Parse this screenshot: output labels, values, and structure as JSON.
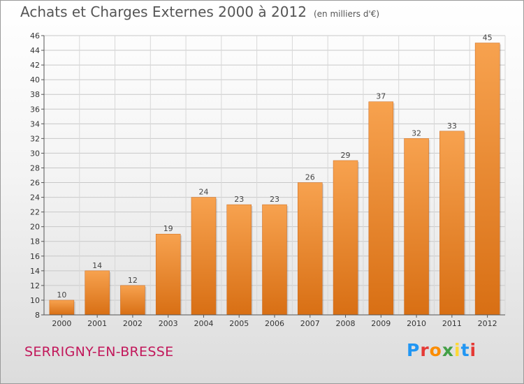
{
  "title": "Achats et Charges Externes 2000 à 2012",
  "unit": "(en milliers d'€)",
  "location": "SERRIGNY-EN-BRESSE",
  "logo": {
    "letters": [
      "P",
      "r",
      "o",
      "x",
      "i",
      "t",
      "i"
    ],
    "colors": [
      "#2196f3",
      "#e53935",
      "#fb8c00",
      "#43a047",
      "#fdd835",
      "#2196f3",
      "#e53935"
    ]
  },
  "chart_data": {
    "type": "bar",
    "title": "Achats et Charges Externes 2000 à 2012",
    "categories": [
      "2000",
      "2001",
      "2002",
      "2003",
      "2004",
      "2005",
      "2006",
      "2007",
      "2008",
      "2009",
      "2010",
      "2011",
      "2012"
    ],
    "values": [
      10,
      14,
      12,
      19,
      24,
      23,
      23,
      26,
      29,
      37,
      32,
      33,
      45
    ],
    "ylim": [
      8,
      46
    ],
    "yticks": [
      8,
      10,
      12,
      14,
      16,
      18,
      20,
      22,
      24,
      26,
      28,
      30,
      32,
      34,
      36,
      38,
      40,
      42,
      44,
      46
    ],
    "grid": true,
    "bar_color": "#f0922e"
  }
}
